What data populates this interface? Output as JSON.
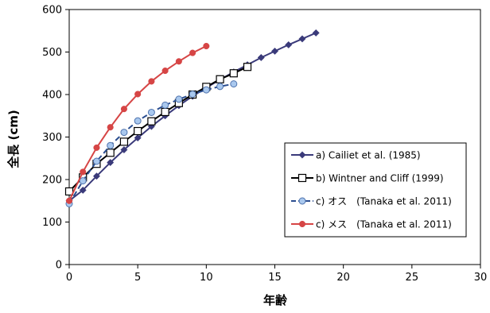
{
  "chart_data": {
    "type": "line",
    "xlabel": "年齢",
    "ylabel": "全長 (cm)",
    "xlim": [
      0,
      30
    ],
    "ylim": [
      0,
      600
    ],
    "x_ticks": [
      0,
      5,
      10,
      15,
      20,
      25,
      30
    ],
    "y_ticks": [
      0,
      100,
      200,
      300,
      400,
      500,
      600
    ],
    "x_tick_labels": [
      "0",
      "5",
      "10",
      "15",
      "20",
      "25",
      "30"
    ],
    "y_tick_labels": [
      "0",
      "100",
      "200",
      "300",
      "400",
      "500",
      "600"
    ],
    "grid": false,
    "legend_position": "lower-right",
    "series": [
      {
        "name": "a) Cailiet et al. (1985)",
        "color": "#3a3a7a",
        "marker": "diamond",
        "dashed": false,
        "x": [
          0,
          1,
          2,
          3,
          4,
          5,
          6,
          7,
          8,
          9,
          10,
          11,
          12,
          13,
          14,
          15,
          16,
          17,
          18
        ],
        "y": [
          150,
          175,
          208,
          240,
          270,
          298,
          325,
          350,
          374,
          396,
          416,
          435,
          453,
          470,
          487,
          502,
          517,
          531,
          545
        ]
      },
      {
        "name": "b) Wintner and Cliff (1999)",
        "color": "#000000",
        "marker": "square",
        "dashed": false,
        "x": [
          0,
          1,
          2,
          3,
          4,
          5,
          6,
          7,
          8,
          9,
          10,
          11,
          12,
          13
        ],
        "y": [
          172,
          205,
          237,
          263,
          289,
          314,
          337,
          359,
          380,
          400,
          418,
          436,
          450,
          465
        ]
      },
      {
        "name": "c) オス　(Tanaka et al. 2011)",
        "color": "#2a4d8f",
        "marker": "circle-light",
        "dashed": true,
        "x": [
          0,
          1,
          2,
          3,
          4,
          5,
          6,
          7,
          8,
          9,
          10,
          11,
          12
        ],
        "y": [
          143,
          197,
          243,
          280,
          311,
          338,
          358,
          375,
          389,
          401,
          411,
          419,
          425
        ]
      },
      {
        "name": "c) メス　(Tanaka et al. 2011)",
        "color": "#d64545",
        "marker": "circle",
        "dashed": false,
        "x": [
          0,
          1,
          2,
          3,
          4,
          5,
          6,
          7,
          8,
          9,
          10
        ],
        "y": [
          150,
          218,
          275,
          323,
          366,
          401,
          431,
          456,
          478,
          498,
          514
        ]
      }
    ]
  }
}
